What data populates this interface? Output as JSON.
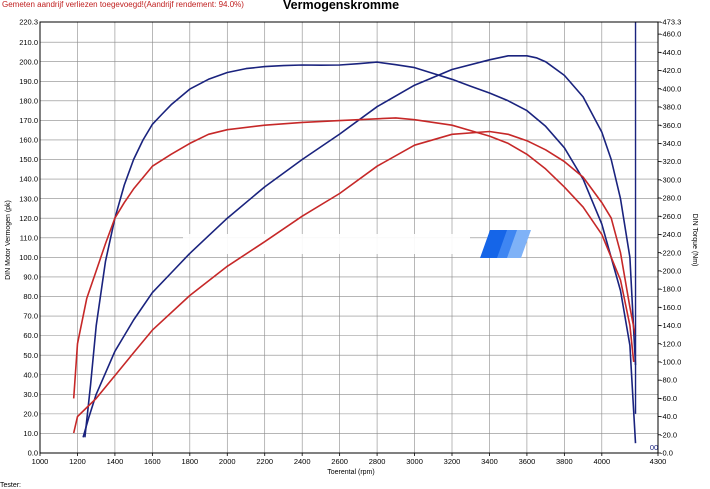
{
  "header": {
    "note": "Gemeten aandrijf verliezen toegevoegd!(Aandrijf rendement: 94.0%)",
    "title": "Vermogenskromme"
  },
  "footer": {
    "label": "Tester:"
  },
  "colors": {
    "power": "#1a237e",
    "torque": "#c62828",
    "grid": "#8a8a8a",
    "axis": "#000000",
    "watermark": "#2a7cf0"
  },
  "chart_data": {
    "type": "line",
    "title": "Vermogenskromme",
    "xlabel": "Toerental (rpm)",
    "ylabel": "DIN Motor Vermogen (pk)",
    "y2label": "DIN Torque (Nm)",
    "xlim": [
      1000,
      4300
    ],
    "ylim": [
      0,
      220.3
    ],
    "y2lim": [
      0,
      473.3
    ],
    "x_ticks": [
      1000,
      1200,
      1400,
      1600,
      1800,
      2000,
      2200,
      2400,
      2600,
      2800,
      3000,
      3200,
      3400,
      3600,
      3800,
      4000,
      4300
    ],
    "x_tick_labels": [
      "1000",
      "1200",
      "1400",
      "1600",
      "1800",
      "2000",
      "2200",
      "2400",
      "2600",
      "2800",
      "3000",
      "3200",
      "3400",
      "3600",
      "3800",
      "4000",
      "4300"
    ],
    "y_ticks": [
      0,
      10,
      20,
      30,
      40,
      50,
      60,
      70,
      80,
      90,
      100,
      110,
      120,
      130,
      140,
      150,
      160,
      170,
      180,
      190,
      200,
      210,
      220.3
    ],
    "y_tick_labels": [
      "0.0",
      "10.0",
      "20.0",
      "30.0",
      "40.0",
      "50.0",
      "60.0",
      "70.0",
      "80.0",
      "90.0",
      "100.0",
      "110.0",
      "120.0",
      "130.0",
      "140.0",
      "150.0",
      "160.0",
      "170.0",
      "180.0",
      "190.0",
      "200.0",
      "210.0",
      "220.3"
    ],
    "y2_ticks": [
      0,
      20,
      40,
      60,
      80,
      100,
      120,
      140,
      160,
      180,
      200,
      220,
      240,
      260,
      280,
      300,
      320,
      340,
      360,
      380,
      400,
      420,
      440,
      460,
      473.3
    ],
    "y2_tick_labels": [
      "0.0",
      "20.0",
      "40.0",
      "60.0",
      "80.0",
      "100.0",
      "120.0",
      "140.0",
      "160.0",
      "180.0",
      "200.0",
      "220.0",
      "240.0",
      "260.0",
      "280.0",
      "300.0",
      "320.0",
      "340.0",
      "360.0",
      "380.0",
      "400.0",
      "420.0",
      "440.0",
      "460.0",
      "473.3"
    ],
    "x_end_marker": "00",
    "grid": true,
    "series": [
      {
        "role": "power",
        "axis": "left",
        "color": "#1a237e",
        "x": [
          1240,
          1270,
          1300,
          1350,
          1400,
          1450,
          1500,
          1550,
          1600,
          1650,
          1700,
          1800,
          1900,
          2000,
          2100,
          2200,
          2300,
          2400,
          2500,
          2600,
          2700,
          2800,
          2900,
          3000,
          3100,
          3200,
          3300,
          3400,
          3500,
          3600,
          3700,
          3800,
          3900,
          4000,
          4100,
          4150,
          4180
        ],
        "y": [
          8,
          35,
          65,
          98,
          120,
          137,
          150,
          160,
          168,
          173,
          178,
          186,
          191,
          194.5,
          196.5,
          197.5,
          198,
          198.3,
          198.2,
          198.3,
          199,
          199.8,
          198.5,
          197,
          194,
          191,
          187.5,
          184,
          180,
          175,
          167,
          156,
          140,
          117,
          83,
          55,
          5
        ]
      },
      {
        "role": "power",
        "axis": "left",
        "color": "#1a237e",
        "x": [
          1230,
          1260,
          1300,
          1400,
          1500,
          1600,
          1700,
          1800,
          1900,
          2000,
          2200,
          2400,
          2600,
          2800,
          3000,
          3200,
          3400,
          3500,
          3600,
          3650,
          3700,
          3800,
          3900,
          4000,
          4050,
          4100,
          4150,
          4180
        ],
        "y": [
          8,
          18,
          30,
          52,
          68,
          82,
          92,
          102,
          111,
          120,
          136,
          150,
          163,
          177,
          188,
          196,
          201,
          203,
          203,
          202,
          200,
          193,
          182,
          164,
          150,
          130,
          100,
          45
        ]
      },
      {
        "role": "torque",
        "axis": "right",
        "color": "#c62828",
        "x": [
          1180,
          1200,
          1250,
          1300,
          1350,
          1400,
          1450,
          1500,
          1600,
          1700,
          1800,
          1900,
          2000,
          2200,
          2400,
          2600,
          2800,
          2900,
          3000,
          3200,
          3400,
          3500,
          3600,
          3700,
          3800,
          3900,
          4000,
          4100,
          4150,
          4170
        ],
        "y": [
          60,
          120,
          170,
          200,
          230,
          258,
          275,
          290,
          315,
          328,
          340,
          350,
          355,
          360,
          363,
          365,
          367,
          368,
          366,
          360,
          348,
          340,
          328,
          312,
          292,
          270,
          240,
          190,
          140,
          100
        ]
      },
      {
        "role": "torque",
        "axis": "right",
        "color": "#c62828",
        "x": [
          1180,
          1200,
          1250,
          1300,
          1400,
          1500,
          1600,
          1800,
          2000,
          2200,
          2400,
          2600,
          2800,
          3000,
          3200,
          3400,
          3500,
          3600,
          3700,
          3800,
          3900,
          4000,
          4050,
          4100,
          4150,
          4180
        ],
        "y": [
          22,
          40,
          50,
          60,
          85,
          110,
          135,
          173,
          205,
          232,
          260,
          285,
          315,
          338,
          350,
          353,
          350,
          343,
          333,
          320,
          303,
          275,
          258,
          220,
          160,
          128
        ]
      }
    ]
  }
}
